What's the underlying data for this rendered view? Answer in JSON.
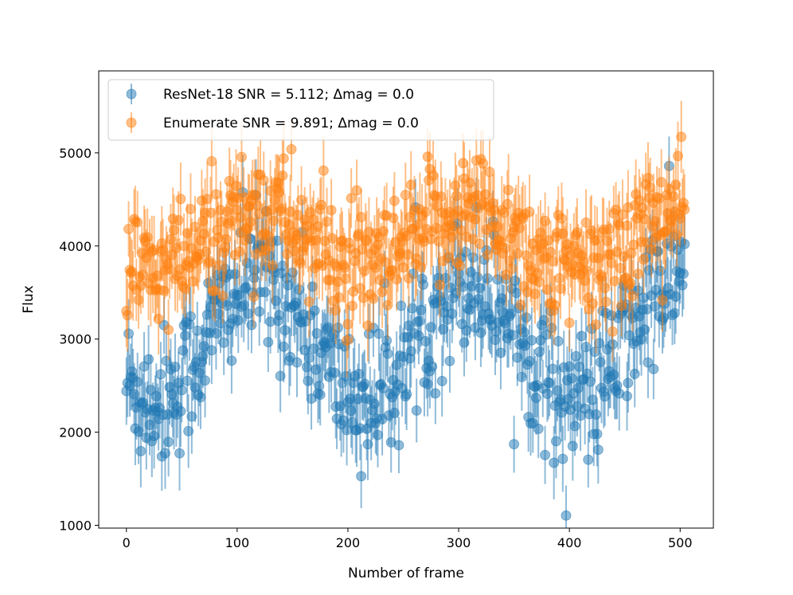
{
  "chart_data": {
    "type": "scatter",
    "title": "",
    "xlabel": "Number of frame",
    "ylabel": "Flux",
    "xlim": [
      -25,
      530
    ],
    "ylim": [
      970,
      5880
    ],
    "xticks": [
      0,
      100,
      200,
      300,
      400,
      500
    ],
    "yticks": [
      1000,
      2000,
      3000,
      4000,
      5000
    ],
    "n_frames": 505,
    "error_bar_typical": 350,
    "series": [
      {
        "name": "ResNet-18",
        "legend": "ResNet-18 SNR = 5.112; Δmag = 0.0",
        "color": "#1f77b4",
        "baseline": 3000,
        "amplitude": 650,
        "scatter": 380,
        "period_frames": 190,
        "phase_peak_frame": 310
      },
      {
        "name": "Enumerate",
        "legend": "Enumerate SNR = 9.891; Δmag = 0.0",
        "color": "#ff7f0e",
        "baseline": 4050,
        "amplitude": 350,
        "scatter": 330,
        "period_frames": 190,
        "phase_peak_frame": 310
      }
    ]
  }
}
